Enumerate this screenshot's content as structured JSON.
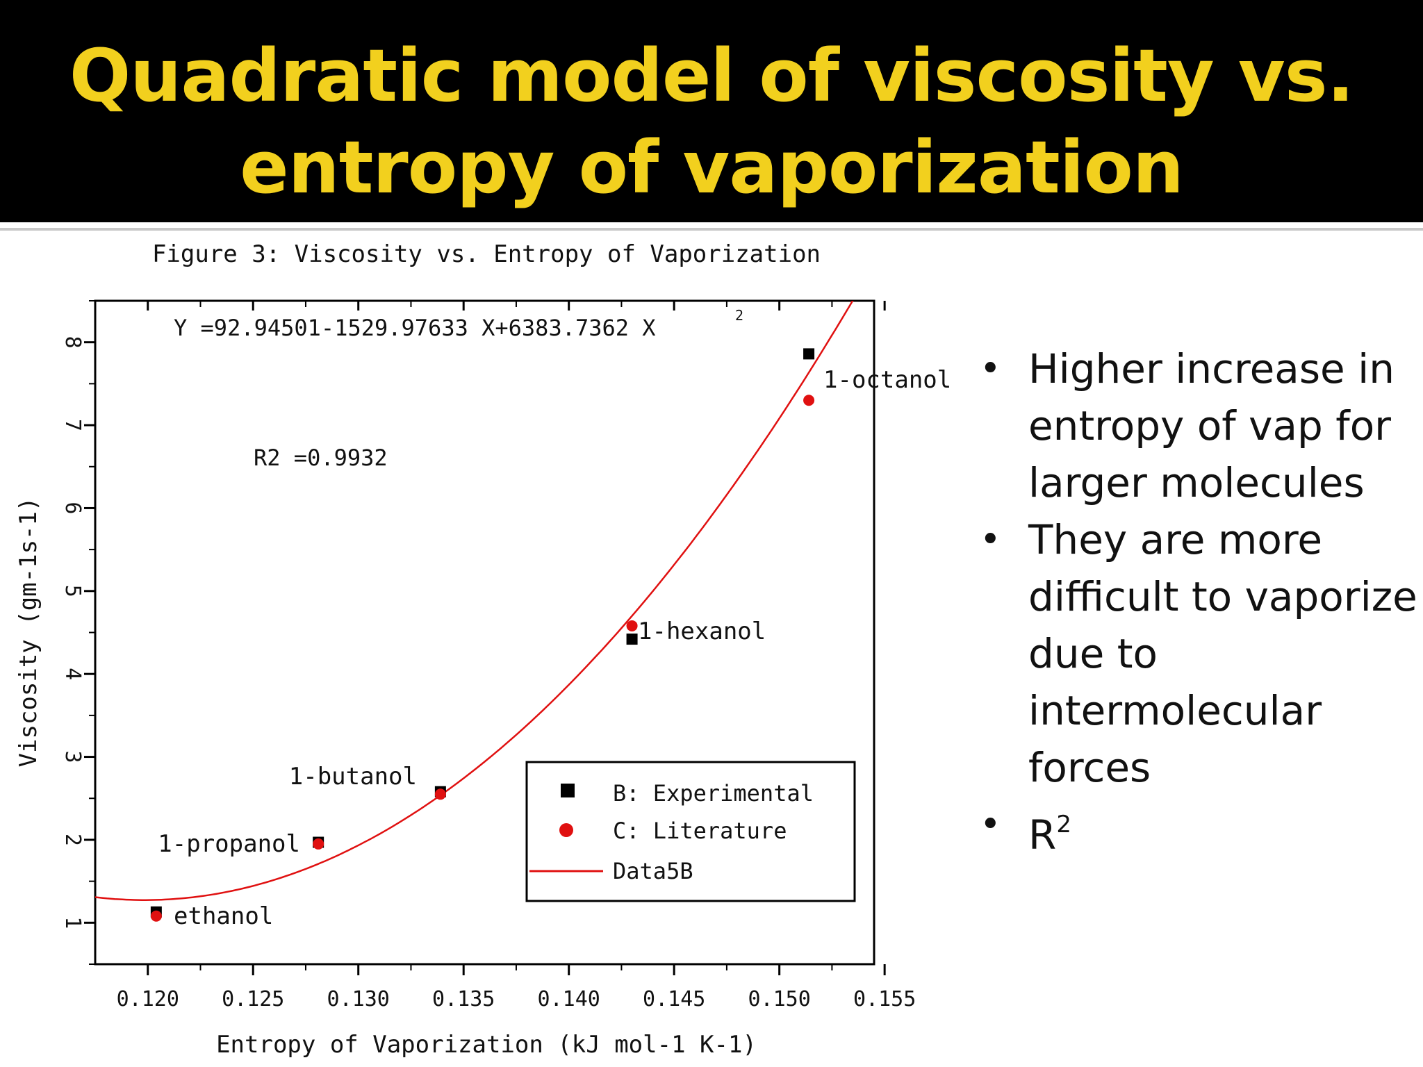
{
  "slide": {
    "title_line1": "Quadratic model of viscosity vs.",
    "title_line2": "entropy of vaporization",
    "bullets": [
      "Higher increase in entropy of vap for larger molecules",
      "They are more difficult to vaporize due to intermolecular forces",
      "R"
    ],
    "bullet3_sup": "2"
  },
  "colors": {
    "title": "#f2d01e",
    "title_bg": "#000000",
    "experimental": "#000000",
    "literature": "#e01010",
    "fit": "#e01010"
  },
  "chart_data": {
    "type": "scatter",
    "title": "Figure 3: Viscosity vs. Entropy of Vaporization",
    "xlabel": "Entropy of Vaporization (kJ mol-1 K-1)",
    "ylabel": "Viscosity (gm-1s-1)",
    "xlim": [
      0.1175,
      0.1545
    ],
    "ylim": [
      0.5,
      8.5
    ],
    "xticks": [
      "0.120",
      "0.125",
      "0.130",
      "0.135",
      "0.140",
      "0.145",
      "0.150",
      "0.155"
    ],
    "yticks": [
      "1",
      "2",
      "3",
      "4",
      "5",
      "6",
      "7",
      "8"
    ],
    "equation": "Y =92.94501-1529.97633 X+6383.7362 X",
    "equation_exp": "2",
    "r2_label": "R2 =0.9932",
    "fit_coefficients": [
      92.94501,
      -1529.97633,
      6383.7362
    ],
    "series": [
      {
        "name": "B: Experimental",
        "marker": "square",
        "x": [
          0.1204,
          0.1281,
          0.1339,
          0.143,
          0.1514
        ],
        "y": [
          1.13,
          1.97,
          2.58,
          4.42,
          7.86
        ]
      },
      {
        "name": "C: Literature",
        "marker": "circle",
        "x": [
          0.1204,
          0.1281,
          0.1339,
          0.143,
          0.1514
        ],
        "y": [
          1.08,
          1.95,
          2.55,
          4.58,
          7.3
        ]
      },
      {
        "name": "Data5B",
        "marker": "line"
      }
    ],
    "point_labels": [
      "ethanol",
      "1-propanol",
      "1-butanol",
      "1-hexanol",
      "1-octanol"
    ],
    "legend_position": "bottom-right"
  }
}
